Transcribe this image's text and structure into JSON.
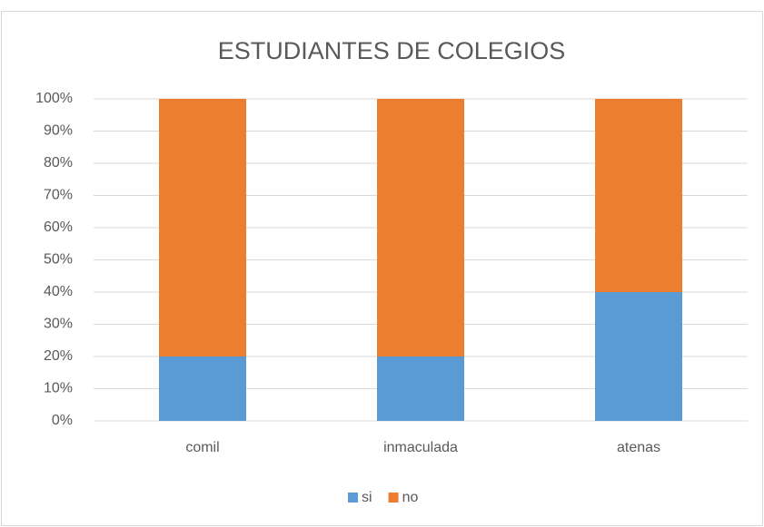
{
  "chart_data": {
    "type": "bar",
    "stacked": true,
    "title": "ESTUDIANTES DE COLEGIOS",
    "categories": [
      "comil",
      "inmaculada",
      "atenas"
    ],
    "series": [
      {
        "name": "si",
        "color": "#5b9bd5",
        "values": [
          20,
          20,
          40
        ]
      },
      {
        "name": "no",
        "color": "#ed7d31",
        "values": [
          80,
          80,
          60
        ]
      }
    ],
    "ylim": [
      0,
      100
    ],
    "yticks": [
      {
        "value": 0,
        "label": "0%"
      },
      {
        "value": 10,
        "label": "10%"
      },
      {
        "value": 20,
        "label": "20%"
      },
      {
        "value": 30,
        "label": "30%"
      },
      {
        "value": 40,
        "label": "40%"
      },
      {
        "value": 50,
        "label": "50%"
      },
      {
        "value": 60,
        "label": "60%"
      },
      {
        "value": 70,
        "label": "70%"
      },
      {
        "value": 80,
        "label": "80%"
      },
      {
        "value": 90,
        "label": "90%"
      },
      {
        "value": 100,
        "label": "100%"
      }
    ],
    "grid": true,
    "legend": "bottom"
  }
}
